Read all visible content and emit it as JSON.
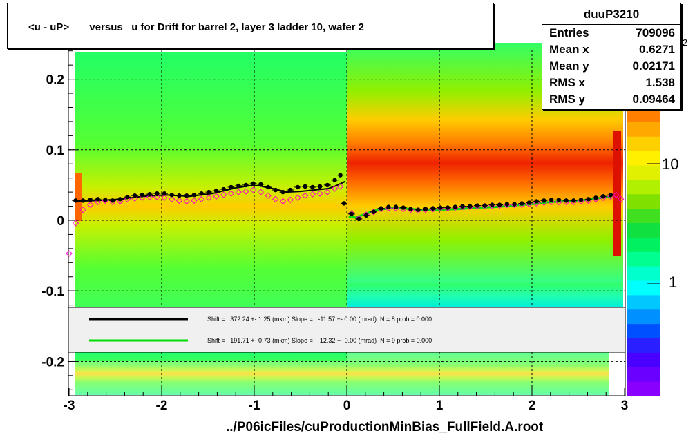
{
  "title": "<u - uP>       versus   u for Drift for barrel 2, layer 3 ladder 10, wafer 2",
  "stats": {
    "name": "duuP3210",
    "rows": [
      {
        "key": "Entries",
        "value": "709096"
      },
      {
        "key": "Mean x",
        "value": "0.6271"
      },
      {
        "key": "Mean y",
        "value": "0.02171"
      },
      {
        "key": "RMS x",
        "value": "1.538"
      },
      {
        "key": "RMS y",
        "value": "0.09464"
      }
    ]
  },
  "footer": "../P06icFiles/cuProductionMinBias_FullField.A.root",
  "legend": [
    {
      "color": "#000000",
      "text": "Shift =   372.24 +- 1.25 (mkm) Slope =   -11.57 +- 0.00 (mrad)  N = 8 prob = 0.000"
    },
    {
      "color": "#00dd00",
      "text": "Shift =   191.71 +- 0.73 (mkm) Slope =    12.32 +- 0.00 (mrad)  N = 9 prob = 0.000"
    }
  ],
  "colorbar": {
    "labels": [
      "1",
      "10",
      "10"
    ],
    "exponent": "2",
    "colors": [
      "#8a00ff",
      "#6a00ff",
      "#4a00ff",
      "#2a20ff",
      "#0050ff",
      "#0090ff",
      "#00c8ff",
      "#00ffff",
      "#00ffcc",
      "#00ff90",
      "#00f060",
      "#10e040",
      "#40e020",
      "#80e000",
      "#b0f000",
      "#e0f000",
      "#fff000",
      "#ffd000",
      "#ffa800",
      "#ff8000",
      "#ff5000",
      "#ff2000",
      "#ee0000",
      "#cc0000"
    ]
  },
  "chart_data": {
    "type": "heatmap",
    "xlim": [
      -3,
      3
    ],
    "ylim": [
      -0.25,
      0.25
    ],
    "xticks": [
      -3,
      -2,
      -1,
      0,
      1,
      2,
      3
    ],
    "xtick_labels": [
      "-3",
      "-2",
      "-1",
      "0",
      "1",
      "2",
      "3"
    ],
    "yticks": [
      -0.2,
      -0.1,
      0,
      0.1,
      0.2
    ],
    "ytick_labels": [
      "-0.2",
      "-0.1",
      "0",
      "0.1",
      "0.2"
    ],
    "grid": true,
    "colors": {
      "low": "#22ff88",
      "mid": "#ffcc00",
      "high": "#ee2200"
    },
    "profile_black": {
      "x": [
        -2.93,
        -2.85,
        -2.77,
        -2.69,
        -2.61,
        -2.53,
        -2.45,
        -2.37,
        -2.29,
        -2.21,
        -2.13,
        -2.05,
        -1.97,
        -1.89,
        -1.81,
        -1.73,
        -1.65,
        -1.57,
        -1.49,
        -1.41,
        -1.33,
        -1.25,
        -1.17,
        -1.09,
        -1.01,
        -0.93,
        -0.85,
        -0.77,
        -0.69,
        -0.61,
        -0.53,
        -0.45,
        -0.37,
        -0.29,
        -0.21,
        -0.13,
        -0.07,
        -0.03,
        0.05,
        0.13,
        0.21,
        0.29,
        0.37,
        0.45,
        0.53,
        0.61,
        0.69,
        0.77,
        0.85,
        0.93,
        1.01,
        1.09,
        1.17,
        1.25,
        1.33,
        1.41,
        1.49,
        1.57,
        1.65,
        1.73,
        1.81,
        1.89,
        1.97,
        2.05,
        2.13,
        2.21,
        2.29,
        2.37,
        2.45,
        2.53,
        2.61,
        2.69,
        2.77,
        2.85
      ],
      "y": [
        0.028,
        0.028,
        0.029,
        0.03,
        0.029,
        0.028,
        0.03,
        0.033,
        0.035,
        0.036,
        0.037,
        0.038,
        0.038,
        0.036,
        0.035,
        0.035,
        0.036,
        0.038,
        0.04,
        0.042,
        0.044,
        0.047,
        0.049,
        0.05,
        0.052,
        0.051,
        0.047,
        0.043,
        0.04,
        0.043,
        0.047,
        0.048,
        0.047,
        0.048,
        0.05,
        0.057,
        0.064,
        0.024,
        0.009,
        0.002,
        0.007,
        0.012,
        0.017,
        0.019,
        0.019,
        0.018,
        0.016,
        0.015,
        0.016,
        0.017,
        0.018,
        0.018,
        0.019,
        0.02,
        0.02,
        0.021,
        0.021,
        0.022,
        0.022,
        0.023,
        0.023,
        0.024,
        0.025,
        0.027,
        0.028,
        0.029,
        0.029,
        0.028,
        0.028,
        0.029,
        0.03,
        0.032,
        0.034,
        0.036
      ]
    },
    "profile_magenta": {
      "x": [
        -3.0,
        -2.93,
        -2.85,
        -2.77,
        -2.69,
        -2.61,
        -2.53,
        -2.45,
        -2.37,
        -2.29,
        -2.21,
        -2.13,
        -2.05,
        -1.97,
        -1.89,
        -1.81,
        -1.73,
        -1.65,
        -1.57,
        -1.49,
        -1.41,
        -1.33,
        -1.25,
        -1.17,
        -1.09,
        -1.01,
        -0.93,
        -0.85,
        -0.77,
        -0.69,
        -0.61,
        -0.53,
        -0.45,
        -0.37,
        -0.29,
        -0.21,
        -0.13,
        -0.07,
        0.05,
        0.13,
        0.21,
        0.29,
        0.37,
        0.45,
        0.53,
        0.61,
        0.69,
        0.77,
        0.85,
        0.93,
        1.01,
        1.09,
        1.17,
        1.25,
        1.33,
        1.41,
        1.49,
        1.57,
        1.65,
        1.73,
        1.81,
        1.89,
        1.97,
        2.05,
        2.13,
        2.21,
        2.29,
        2.37,
        2.45,
        2.53,
        2.61,
        2.69,
        2.77,
        2.85,
        2.91,
        2.96
      ],
      "y": [
        -0.047,
        -0.004,
        0.015,
        0.022,
        0.026,
        0.028,
        0.026,
        0.027,
        0.03,
        0.031,
        0.032,
        0.033,
        0.033,
        0.032,
        0.03,
        0.028,
        0.027,
        0.028,
        0.03,
        0.032,
        0.034,
        0.036,
        0.038,
        0.04,
        0.041,
        0.043,
        0.04,
        0.035,
        0.03,
        0.027,
        0.029,
        0.032,
        0.035,
        0.037,
        0.038,
        0.04,
        0.045,
        0.048,
        0.01,
        0.003,
        0.008,
        0.012,
        0.016,
        0.017,
        0.017,
        0.016,
        0.015,
        0.014,
        0.015,
        0.016,
        0.017,
        0.017,
        0.018,
        0.019,
        0.019,
        0.02,
        0.02,
        0.021,
        0.021,
        0.022,
        0.022,
        0.022,
        0.023,
        0.024,
        0.025,
        0.026,
        0.026,
        0.026,
        0.026,
        0.027,
        0.028,
        0.03,
        0.032,
        0.034,
        0.036,
        0.03
      ]
    },
    "fit_black": {
      "x": [
        -2.95,
        -2.7,
        -2.45,
        -2.2,
        -1.95,
        -1.7,
        -1.45,
        -1.2,
        -1.05,
        -0.95,
        -0.8,
        -0.65,
        -0.5,
        -0.35,
        -0.2,
        -0.1,
        -0.02
      ],
      "y": [
        0.027,
        0.028,
        0.03,
        0.034,
        0.036,
        0.034,
        0.038,
        0.046,
        0.049,
        0.049,
        0.045,
        0.04,
        0.041,
        0.043,
        0.045,
        0.05,
        0.055
      ]
    },
    "fit_green": {
      "x": [
        0.02,
        0.1,
        0.2,
        0.3,
        0.45,
        0.6,
        0.8,
        1.0,
        1.2,
        1.4,
        1.6,
        1.8,
        2.0,
        2.2,
        2.4,
        2.6,
        2.75,
        2.85
      ],
      "y": [
        0.005,
        0.004,
        0.009,
        0.014,
        0.017,
        0.017,
        0.015,
        0.015,
        0.016,
        0.018,
        0.019,
        0.021,
        0.023,
        0.026,
        0.027,
        0.029,
        0.032,
        0.034
      ]
    }
  }
}
